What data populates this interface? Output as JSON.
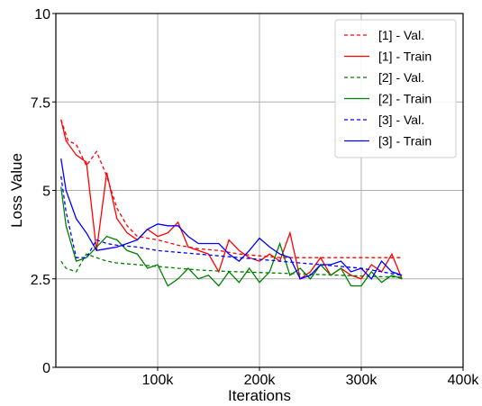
{
  "chart_data": {
    "type": "line",
    "title": "",
    "xlabel": "Iterations",
    "ylabel": "Loss Value",
    "xlim": [
      0,
      400000
    ],
    "ylim": [
      0,
      10
    ],
    "grid": true,
    "legend_position": "top-right",
    "x_ticks": [
      {
        "value": 100000,
        "label": "100k"
      },
      {
        "value": 200000,
        "label": "200k"
      },
      {
        "value": 300000,
        "label": "300k"
      },
      {
        "value": 400000,
        "label": "400k"
      }
    ],
    "y_ticks": [
      {
        "value": 0,
        "label": "0"
      },
      {
        "value": 2.5,
        "label": "2.5"
      },
      {
        "value": 5,
        "label": "5"
      },
      {
        "value": 7.5,
        "label": "7.5"
      },
      {
        "value": 10,
        "label": "10"
      }
    ],
    "series": [
      {
        "name": "[1] - Val.",
        "color": "#ff0000",
        "style": "dashed",
        "x": [
          5000,
          12000,
          20000,
          30000,
          40000,
          50000,
          60000,
          70000,
          80000,
          100000,
          120000,
          140000,
          160000,
          180000,
          200000,
          220000,
          240000,
          260000,
          280000,
          300000,
          320000,
          340000
        ],
        "y": [
          7.0,
          6.4,
          6.3,
          5.7,
          6.1,
          5.4,
          4.5,
          4.0,
          3.7,
          3.6,
          3.45,
          3.35,
          3.3,
          3.2,
          3.15,
          3.1,
          3.1,
          3.1,
          3.1,
          3.1,
          3.1,
          3.1
        ]
      },
      {
        "name": "[1] - Train",
        "color": "#ff0000",
        "style": "solid",
        "x": [
          5000,
          10000,
          20000,
          30000,
          40000,
          50000,
          60000,
          70000,
          80000,
          90000,
          100000,
          110000,
          120000,
          130000,
          140000,
          150000,
          160000,
          170000,
          180000,
          190000,
          200000,
          210000,
          220000,
          230000,
          240000,
          250000,
          260000,
          270000,
          280000,
          290000,
          300000,
          310000,
          320000,
          330000,
          340000
        ],
        "y": [
          7.0,
          6.4,
          6.0,
          5.8,
          3.3,
          5.5,
          4.2,
          3.8,
          3.6,
          3.9,
          3.7,
          3.8,
          4.1,
          3.4,
          3.3,
          3.2,
          2.7,
          3.6,
          3.3,
          3.1,
          3.0,
          3.2,
          3.0,
          3.8,
          2.5,
          2.7,
          3.1,
          2.6,
          2.8,
          2.6,
          2.5,
          2.9,
          2.7,
          3.2,
          2.5
        ]
      },
      {
        "name": "[2] - Val.",
        "color": "#008000",
        "style": "dashed",
        "x": [
          5000,
          10000,
          20000,
          30000,
          40000,
          50000,
          60000,
          80000,
          100000,
          120000,
          140000,
          160000,
          180000,
          200000,
          220000,
          240000,
          260000,
          280000,
          300000,
          320000,
          340000
        ],
        "y": [
          3.0,
          2.8,
          2.7,
          3.2,
          3.1,
          3.0,
          2.95,
          2.9,
          2.85,
          2.8,
          2.75,
          2.72,
          2.7,
          2.68,
          2.66,
          2.64,
          2.62,
          2.6,
          2.58,
          2.56,
          2.55
        ]
      },
      {
        "name": "[2] - Train",
        "color": "#008000",
        "style": "solid",
        "x": [
          5000,
          10000,
          20000,
          30000,
          40000,
          50000,
          60000,
          70000,
          80000,
          90000,
          100000,
          110000,
          120000,
          130000,
          140000,
          150000,
          160000,
          170000,
          180000,
          190000,
          200000,
          210000,
          220000,
          230000,
          240000,
          250000,
          260000,
          270000,
          280000,
          290000,
          300000,
          310000,
          320000,
          330000,
          340000
        ],
        "y": [
          5.1,
          4.0,
          3.0,
          3.1,
          3.4,
          3.7,
          3.6,
          3.3,
          3.2,
          2.8,
          2.9,
          2.3,
          2.5,
          2.8,
          2.5,
          2.6,
          2.3,
          2.7,
          2.4,
          2.8,
          2.4,
          2.7,
          3.5,
          2.6,
          2.8,
          2.5,
          2.9,
          2.6,
          2.8,
          2.3,
          2.3,
          2.7,
          2.4,
          2.6,
          2.5
        ]
      },
      {
        "name": "[3] - Val.",
        "color": "#0000ff",
        "style": "dashed",
        "x": [
          5000,
          10000,
          20000,
          30000,
          40000,
          50000,
          60000,
          80000,
          100000,
          120000,
          140000,
          160000,
          180000,
          200000,
          220000,
          240000,
          260000,
          280000,
          300000,
          320000,
          340000
        ],
        "y": [
          5.4,
          4.4,
          3.1,
          3.1,
          3.6,
          3.5,
          3.45,
          3.4,
          3.3,
          3.25,
          3.2,
          3.15,
          3.1,
          3.05,
          3.0,
          2.95,
          2.9,
          2.85,
          2.8,
          2.7,
          2.6
        ]
      },
      {
        "name": "[3] - Train",
        "color": "#0000ff",
        "style": "solid",
        "x": [
          5000,
          10000,
          20000,
          30000,
          40000,
          50000,
          60000,
          70000,
          80000,
          90000,
          100000,
          110000,
          120000,
          130000,
          140000,
          150000,
          160000,
          170000,
          180000,
          190000,
          200000,
          210000,
          220000,
          230000,
          240000,
          250000,
          260000,
          270000,
          280000,
          290000,
          300000,
          310000,
          320000,
          330000,
          340000
        ],
        "y": [
          5.9,
          5.0,
          4.2,
          3.8,
          3.3,
          3.35,
          3.4,
          3.5,
          3.6,
          3.9,
          4.05,
          4.0,
          4.0,
          3.7,
          3.5,
          3.5,
          3.5,
          3.2,
          3.0,
          3.3,
          3.65,
          3.4,
          3.2,
          3.1,
          2.5,
          2.6,
          2.9,
          2.9,
          3.0,
          2.7,
          2.8,
          2.5,
          3.0,
          2.7,
          2.6
        ]
      }
    ]
  }
}
